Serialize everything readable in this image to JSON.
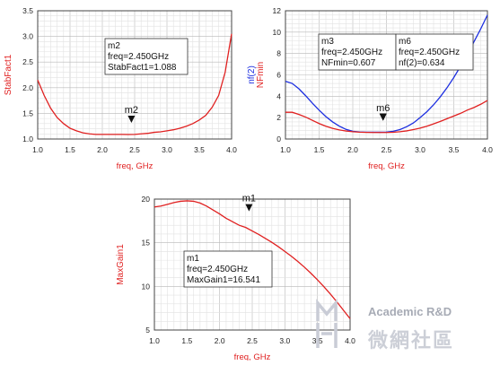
{
  "chart_data": [
    {
      "type": "line",
      "xlabel": "freq, GHz",
      "ylabel": "StabFact1",
      "xlim": [
        1.0,
        4.0
      ],
      "ylim": [
        1.0,
        3.5
      ],
      "xticks": [
        "1.0",
        "1.5",
        "2.0",
        "2.5",
        "3.0",
        "3.5",
        "4.0"
      ],
      "yticks": [
        "1.0",
        "1.5",
        "2.0",
        "2.5",
        "3.0",
        "3.5"
      ],
      "grid": true,
      "series": [
        {
          "name": "StabFact1",
          "color": "#e02020",
          "x": [
            1.0,
            1.1,
            1.2,
            1.3,
            1.4,
            1.5,
            1.6,
            1.7,
            1.8,
            1.9,
            2.0,
            2.1,
            2.2,
            2.3,
            2.4,
            2.5,
            2.6,
            2.7,
            2.8,
            2.9,
            3.0,
            3.1,
            3.2,
            3.3,
            3.4,
            3.5,
            3.6,
            3.7,
            3.8,
            3.9,
            4.0
          ],
          "y": [
            2.15,
            1.85,
            1.6,
            1.42,
            1.3,
            1.21,
            1.16,
            1.12,
            1.1,
            1.09,
            1.09,
            1.09,
            1.09,
            1.09,
            1.088,
            1.09,
            1.1,
            1.11,
            1.13,
            1.14,
            1.16,
            1.18,
            1.21,
            1.25,
            1.3,
            1.37,
            1.46,
            1.62,
            1.85,
            2.3,
            3.05
          ]
        }
      ],
      "markers": [
        {
          "id": "m2",
          "x": 2.45,
          "y": 1.088,
          "label": "m2",
          "box_lines": [
            "m2",
            "freq=2.450GHz",
            "StabFact1=1.088"
          ]
        }
      ]
    },
    {
      "type": "line",
      "xlabel": "freq, GHz",
      "ylabel_lines": [
        "nf(2)",
        "NFmin"
      ],
      "xlim": [
        1.0,
        4.0
      ],
      "ylim": [
        0,
        12
      ],
      "xticks": [
        "1.0",
        "1.5",
        "2.0",
        "2.5",
        "3.0",
        "3.5",
        "4.0"
      ],
      "yticks": [
        "0",
        "2",
        "4",
        "6",
        "8",
        "10",
        "12"
      ],
      "grid": true,
      "series": [
        {
          "name": "nf(2)",
          "color": "#1c2ee0",
          "x": [
            1.0,
            1.1,
            1.2,
            1.3,
            1.4,
            1.5,
            1.6,
            1.7,
            1.8,
            1.9,
            2.0,
            2.1,
            2.2,
            2.3,
            2.4,
            2.5,
            2.6,
            2.7,
            2.8,
            2.9,
            3.0,
            3.1,
            3.2,
            3.3,
            3.4,
            3.5,
            3.6,
            3.7,
            3.8,
            3.9,
            4.0
          ],
          "y": [
            5.4,
            5.2,
            4.7,
            4.05,
            3.35,
            2.7,
            2.1,
            1.6,
            1.2,
            0.9,
            0.72,
            0.66,
            0.64,
            0.64,
            0.634,
            0.65,
            0.72,
            0.88,
            1.15,
            1.5,
            2.0,
            2.55,
            3.2,
            3.95,
            4.8,
            5.75,
            6.8,
            7.9,
            9.1,
            10.3,
            11.6
          ]
        },
        {
          "name": "NFmin",
          "color": "#e02020",
          "x": [
            1.0,
            1.1,
            1.2,
            1.3,
            1.4,
            1.5,
            1.6,
            1.7,
            1.8,
            1.9,
            2.0,
            2.1,
            2.2,
            2.3,
            2.4,
            2.5,
            2.6,
            2.7,
            2.8,
            2.9,
            3.0,
            3.1,
            3.2,
            3.3,
            3.4,
            3.5,
            3.6,
            3.7,
            3.8,
            3.9,
            4.0
          ],
          "y": [
            2.5,
            2.5,
            2.3,
            2.05,
            1.75,
            1.45,
            1.2,
            1.0,
            0.85,
            0.75,
            0.68,
            0.64,
            0.62,
            0.61,
            0.607,
            0.61,
            0.63,
            0.68,
            0.76,
            0.88,
            1.02,
            1.2,
            1.42,
            1.65,
            1.9,
            2.15,
            2.4,
            2.7,
            2.95,
            3.25,
            3.6
          ]
        }
      ],
      "markers": [
        {
          "id": "m3",
          "x": 2.45,
          "y": 0.607,
          "label": "m6",
          "box_lines": [
            "m3",
            "freq=2.450GHz",
            "NFmin=0.607"
          ]
        },
        {
          "id": "m6",
          "x": 2.45,
          "y": 0.634,
          "label": "",
          "box_lines": [
            "m6",
            "freq=2.450GHz",
            "nf(2)=0.634"
          ]
        }
      ]
    },
    {
      "type": "line",
      "xlabel": "freq, GHz",
      "ylabel": "MaxGain1",
      "xlim": [
        1.0,
        4.0
      ],
      "ylim": [
        5,
        20
      ],
      "xticks": [
        "1.0",
        "1.5",
        "2.0",
        "2.5",
        "3.0",
        "3.5",
        "4.0"
      ],
      "yticks": [
        "5",
        "10",
        "15",
        "20"
      ],
      "grid": true,
      "series": [
        {
          "name": "MaxGain1",
          "color": "#e02020",
          "x": [
            1.0,
            1.1,
            1.2,
            1.3,
            1.4,
            1.5,
            1.6,
            1.7,
            1.8,
            1.9,
            2.0,
            2.1,
            2.2,
            2.3,
            2.4,
            2.5,
            2.6,
            2.7,
            2.8,
            2.9,
            3.0,
            3.1,
            3.2,
            3.3,
            3.4,
            3.5,
            3.6,
            3.7,
            3.8,
            3.9,
            4.0
          ],
          "y": [
            19.1,
            19.2,
            19.4,
            19.6,
            19.75,
            19.8,
            19.75,
            19.55,
            19.2,
            18.75,
            18.3,
            17.8,
            17.4,
            17.0,
            16.75,
            16.35,
            15.95,
            15.5,
            15.05,
            14.55,
            14.0,
            13.45,
            12.85,
            12.2,
            11.5,
            10.75,
            9.95,
            9.1,
            8.2,
            7.25,
            6.3
          ]
        }
      ],
      "markers": [
        {
          "id": "m1",
          "x": 2.45,
          "y": 16.541,
          "label": "m1",
          "box_lines": [
            "m1",
            "freq=2.450GHz",
            "MaxGain1=16.541"
          ]
        }
      ]
    }
  ],
  "watermark": {
    "line1": "Academic R&D",
    "line2": "微網社區"
  }
}
